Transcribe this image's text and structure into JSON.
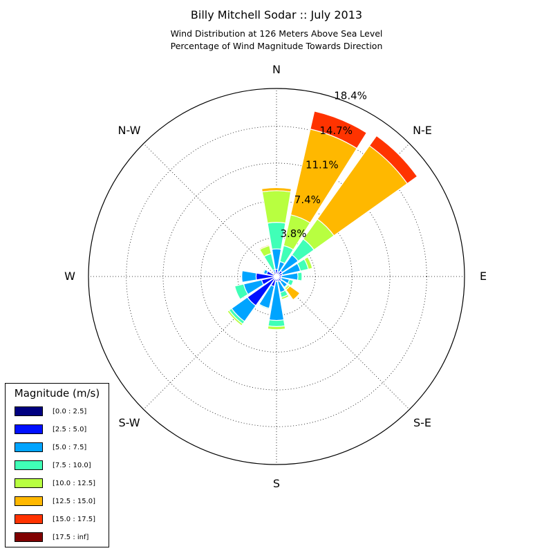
{
  "chart_data": {
    "type": "windrose",
    "title": "Billy Mitchell Sodar :: July 2013",
    "subtitle_lines": [
      "Wind Distribution at 126 Meters Above Sea Level",
      "Percentage of Wind Magnitude Towards Direction"
    ],
    "direction_labels": [
      "N",
      "N-E",
      "E",
      "S-E",
      "S",
      "S-W",
      "W",
      "N-W"
    ],
    "radial_ticks": [
      "3.8%",
      "7.4%",
      "11.1%",
      "14.7%",
      "18.4%"
    ],
    "radial_tick_values": [
      3.8,
      7.4,
      11.1,
      14.7,
      18.4
    ],
    "rmax": 18.4,
    "grid": true,
    "legend": {
      "title": "Magnitude (m/s)",
      "placement": "lower-left",
      "bins": [
        {
          "label": "[0.0 : 2.5]",
          "color": "#000080"
        },
        {
          "label": "[2.5 : 5.0]",
          "color": "#0010ff"
        },
        {
          "label": "[5.0 : 7.5]",
          "color": "#00a4ff"
        },
        {
          "label": "[7.5 : 10.0]",
          "color": "#40ffb7"
        },
        {
          "label": "[10.0 : 12.5]",
          "color": "#b8ff40"
        },
        {
          "label": "[12.5 : 15.0]",
          "color": "#ffb800"
        },
        {
          "label": "[15.0 : 17.5]",
          "color": "#ff3300"
        },
        {
          "label": "[17.5 : inf]",
          "color": "#800000"
        }
      ]
    },
    "directions_deg": [
      0,
      22.5,
      45,
      67.5,
      90,
      112.5,
      135,
      157.5,
      180,
      202.5,
      225,
      247.5,
      270,
      292.5,
      337.5
    ],
    "series": [
      {
        "name": "[0.0 : 2.5]",
        "values": [
          0.1,
          0.1,
          0.1,
          0.1,
          0.1,
          0.1,
          0.1,
          0.1,
          0.1,
          0.1,
          0.1,
          0.1,
          0.1,
          0.1,
          0.1
        ]
      },
      {
        "name": "[2.5 : 5.0]",
        "values": [
          0.6,
          0.4,
          0.6,
          0.5,
          0.4,
          0.4,
          0.5,
          0.4,
          0.4,
          0.9,
          3.4,
          1.4,
          1.9,
          0.9,
          0.4
        ]
      },
      {
        "name": "[5.0 : 7.5]",
        "values": [
          2.0,
          1.0,
          1.9,
          1.8,
          1.6,
          0.8,
          0.7,
          1.1,
          3.8,
          2.2,
          1.9,
          1.8,
          1.4,
          0.3,
          0.2
        ]
      },
      {
        "name": "[7.5 : 10.0]",
        "values": [
          2.6,
          1.6,
          1.9,
          0.8,
          0.4,
          0.4,
          0.1,
          0.5,
          0.6,
          0.1,
          0.3,
          0.9,
          0.0,
          0.1,
          1.6
        ]
      },
      {
        "name": "[10.0 : 12.5]",
        "values": [
          3.1,
          3.1,
          2.4,
          0.4,
          0.0,
          0.0,
          0.2,
          0.2,
          0.3,
          0.0,
          0.2,
          0.0,
          0.0,
          0.0,
          0.8
        ]
      },
      {
        "name": "[12.5 : 15.0]",
        "values": [
          0.3,
          8.6,
          8.8,
          0.0,
          0.0,
          0.0,
          1.2,
          0.0,
          0.0,
          0.0,
          0.0,
          0.0,
          0.0,
          0.0,
          0.1
        ]
      },
      {
        "name": "[15.0 : 17.5]",
        "values": [
          0.0,
          1.8,
          1.2,
          0.0,
          0.0,
          0.0,
          0.0,
          0.0,
          0.0,
          0.0,
          0.0,
          0.0,
          0.0,
          0.0,
          0.0
        ]
      },
      {
        "name": "[17.5 : inf]",
        "values": [
          0.0,
          0.0,
          0.0,
          0.0,
          0.0,
          0.0,
          0.0,
          0.0,
          0.0,
          0.0,
          0.0,
          0.0,
          0.0,
          0.0,
          0.0
        ]
      }
    ]
  }
}
